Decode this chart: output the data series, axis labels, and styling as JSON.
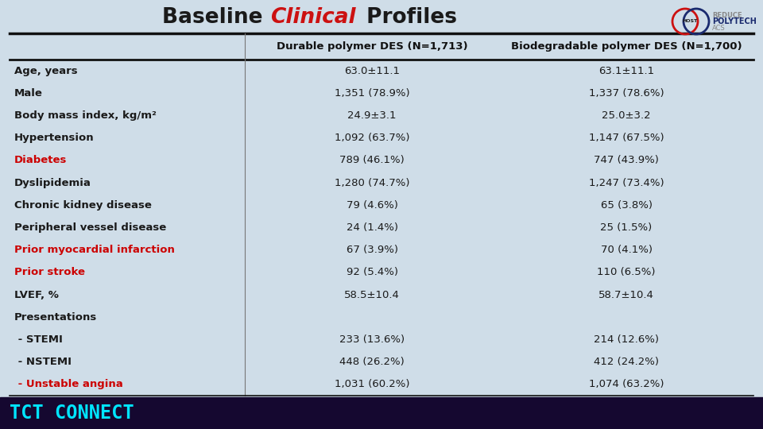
{
  "title_baseline": "Baseline ",
  "title_clinical": "Clinical",
  "title_profiles": " Profiles",
  "col_headers": [
    "Durable polymer DES (N=1,713)",
    "Biodegradable polymer DES (N=1,700)"
  ],
  "rows": [
    {
      "label": "Age, years",
      "label_color": "#1a1a1a",
      "col1": "63.0±11.1",
      "col2": "63.1±11.1"
    },
    {
      "label": "Male",
      "label_color": "#1a1a1a",
      "col1": "1,351 (78.9%)",
      "col2": "1,337 (78.6%)"
    },
    {
      "label": "Body mass index, kg/m²",
      "label_color": "#1a1a1a",
      "col1": "24.9±3.1",
      "col2": "25.0±3.2"
    },
    {
      "label": "Hypertension",
      "label_color": "#1a1a1a",
      "col1": "1,092 (63.7%)",
      "col2": "1,147 (67.5%)"
    },
    {
      "label": "Diabetes",
      "label_color": "#cc0000",
      "col1": "789 (46.1%)",
      "col2": "747 (43.9%)"
    },
    {
      "label": "Dyslipidemia",
      "label_color": "#1a1a1a",
      "col1": "1,280 (74.7%)",
      "col2": "1,247 (73.4%)"
    },
    {
      "label": "Chronic kidney disease",
      "label_color": "#1a1a1a",
      "col1": "79 (4.6%)",
      "col2": "65 (3.8%)"
    },
    {
      "label": "Peripheral vessel disease",
      "label_color": "#1a1a1a",
      "col1": "24 (1.4%)",
      "col2": "25 (1.5%)"
    },
    {
      "label": "Prior myocardial infarction",
      "label_color": "#cc0000",
      "col1": "67 (3.9%)",
      "col2": "70 (4.1%)"
    },
    {
      "label": "Prior stroke",
      "label_color": "#cc0000",
      "col1": "92 (5.4%)",
      "col2": "110 (6.5%)"
    },
    {
      "label": "LVEF, %",
      "label_color": "#1a1a1a",
      "col1": "58.5±10.4",
      "col2": "58.7±10.4"
    },
    {
      "label": "Presentations",
      "label_color": "#1a1a1a",
      "col1": "",
      "col2": ""
    },
    {
      "label": " - STEMI",
      "label_color": "#1a1a1a",
      "col1": "233 (13.6%)",
      "col2": "214 (12.6%)"
    },
    {
      "label": " - NSTEMI",
      "label_color": "#1a1a1a",
      "col1": "448 (26.2%)",
      "col2": "412 (24.2%)"
    },
    {
      "label": " - Unstable angina",
      "label_color": "#cc0000",
      "col1": "1,031 (60.2%)",
      "col2": "1,074 (63.2%)"
    }
  ],
  "bg_color": "#cfdde8",
  "bottom_bar_color": "#150830",
  "bottom_text": "TCT CONNECT",
  "bottom_text_color": "#00e5ff"
}
